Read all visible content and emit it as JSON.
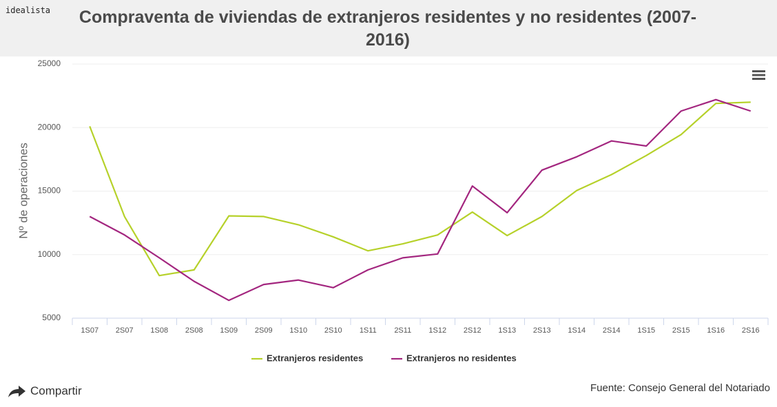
{
  "page": {
    "brand": "idealista",
    "share": "Compartir",
    "source": "Fuente: Consejo General del Notariado"
  },
  "chart_data": {
    "type": "line",
    "title": "Compraventa de viviendas de extranjeros residentes y no residentes (2007-2016)",
    "y_label": "Nº de operaciones",
    "categories": [
      "1S07",
      "2S07",
      "1S08",
      "2S08",
      "1S09",
      "2S09",
      "1S10",
      "2S10",
      "1S11",
      "2S11",
      "1S12",
      "2S12",
      "1S13",
      "2S13",
      "1S14",
      "2S14",
      "1S15",
      "2S15",
      "1S16",
      "2S16"
    ],
    "series": [
      {
        "name": "Extranjeros residentes",
        "color": "#b6d12a",
        "values": [
          20100,
          13000,
          8350,
          8800,
          13050,
          13000,
          12350,
          11400,
          10300,
          10850,
          11550,
          13350,
          11500,
          13000,
          15050,
          16300,
          17800,
          19450,
          21900,
          22000
        ]
      },
      {
        "name": "Extranjeros no residentes",
        "color": "#a3267f",
        "values": [
          13000,
          11550,
          9750,
          7900,
          6400,
          7650,
          8000,
          7400,
          8800,
          9750,
          10050,
          15400,
          13300,
          16650,
          17700,
          18950,
          18550,
          21300,
          22200,
          21300
        ]
      }
    ],
    "ylim": [
      5000,
      25000
    ],
    "yticks": [
      5000,
      10000,
      15000,
      20000,
      25000
    ],
    "grid": true
  }
}
